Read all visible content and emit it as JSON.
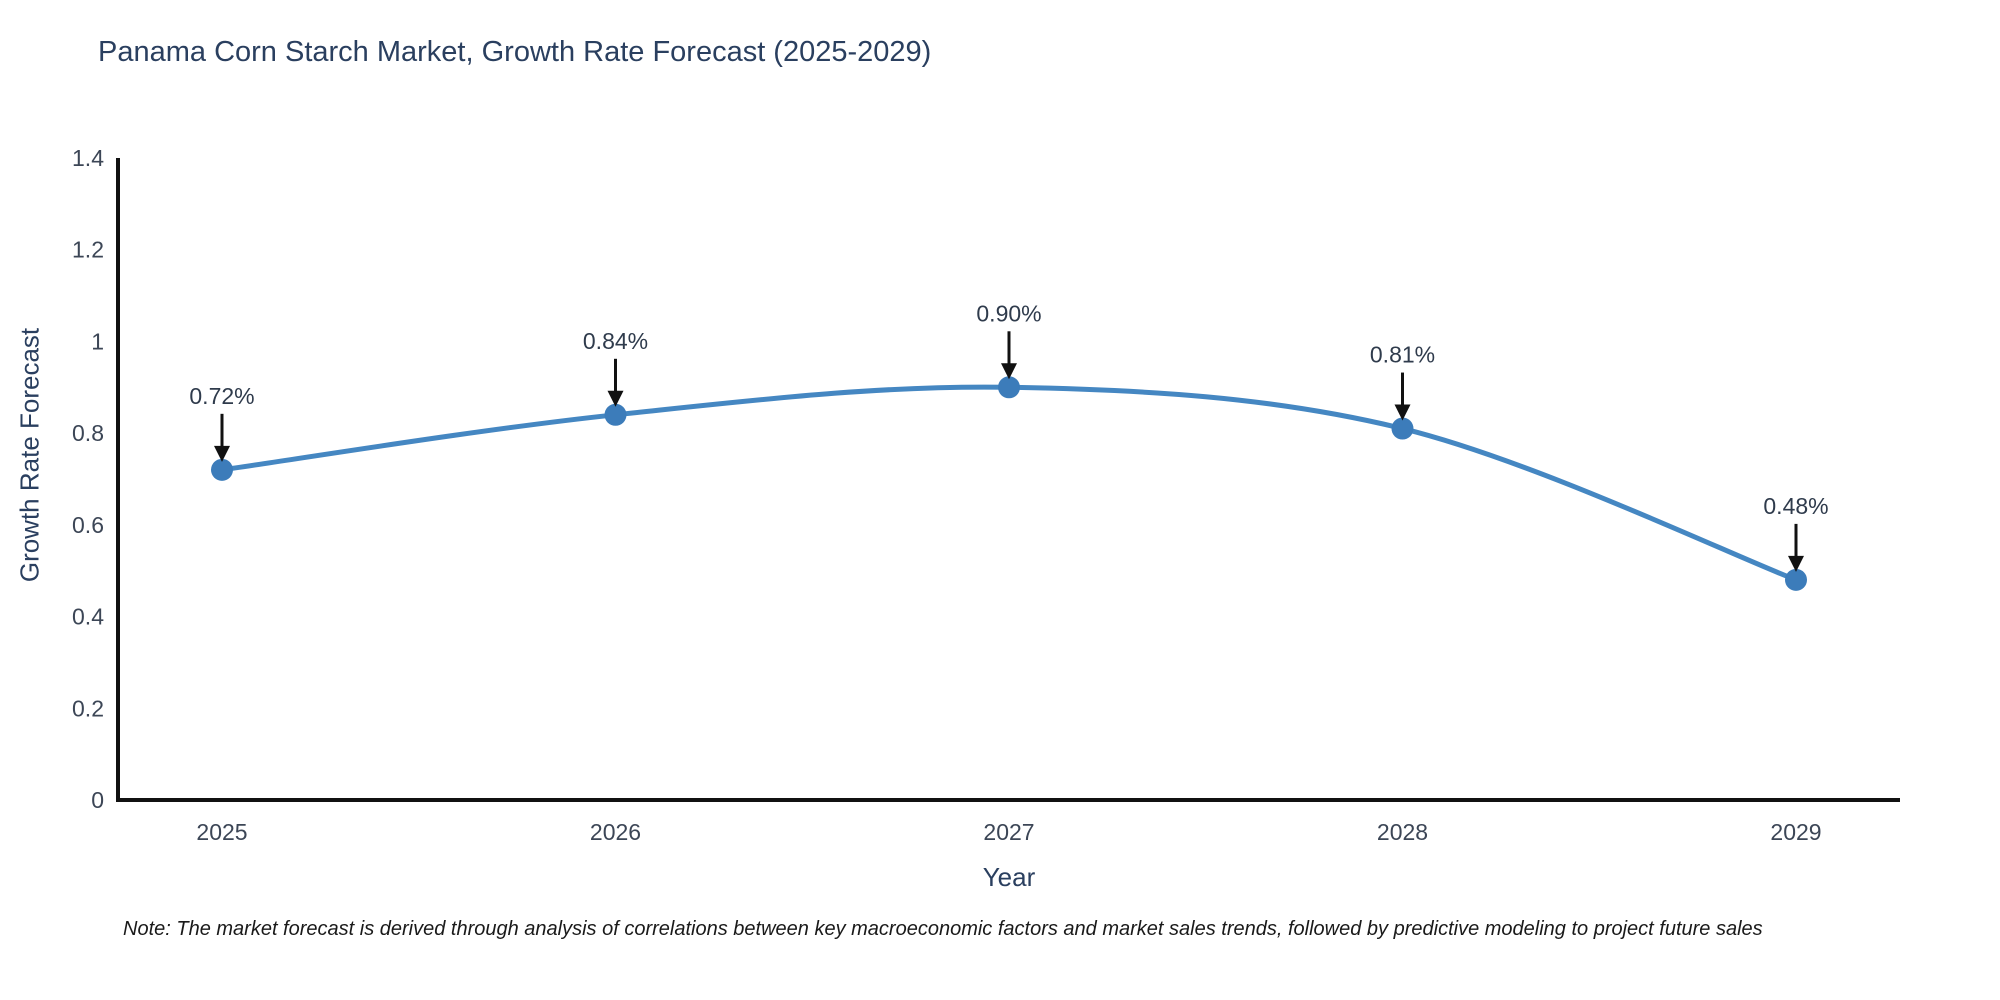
{
  "title": {
    "text": "Panama Corn Starch Market, Growth Rate Forecast (2025-2029)",
    "color": "#2a3f5f"
  },
  "chart_data": {
    "type": "line",
    "line_shape": "spline",
    "x": [
      2025,
      2026,
      2027,
      2028,
      2029
    ],
    "values": [
      0.72,
      0.84,
      0.9,
      0.81,
      0.48
    ],
    "point_labels": [
      "0.72%",
      "0.84%",
      "0.90%",
      "0.81%",
      "0.48%"
    ],
    "xtick_labels": [
      "2025",
      "2026",
      "2027",
      "2028",
      "2029"
    ],
    "ytick_labels": [
      "0",
      "0.2",
      "0.4",
      "0.6",
      "0.8",
      "1",
      "1.2",
      "1.4"
    ],
    "ytick_values": [
      0,
      0.2,
      0.4,
      0.6,
      0.8,
      1.0,
      1.2,
      1.4
    ],
    "ylim": [
      0,
      1.4
    ],
    "title": "Panama Corn Starch Market, Growth Rate Forecast (2025-2029)",
    "xlabel": "Year",
    "ylabel": "Growth Rate Forecast",
    "grid": false,
    "legend_position": "none",
    "colors": {
      "line": "#4587c2",
      "marker": "#3c7cba",
      "axis_line": "#111111",
      "tick_label": "#3c4656",
      "annotation_text": "#2f3b4c",
      "annotation_arrow": "#111111"
    }
  },
  "note": {
    "text": "Note: The market forecast is derived through analysis of correlations between key macroeconomic factors and market sales trends, followed by predictive modeling to project future sales"
  }
}
